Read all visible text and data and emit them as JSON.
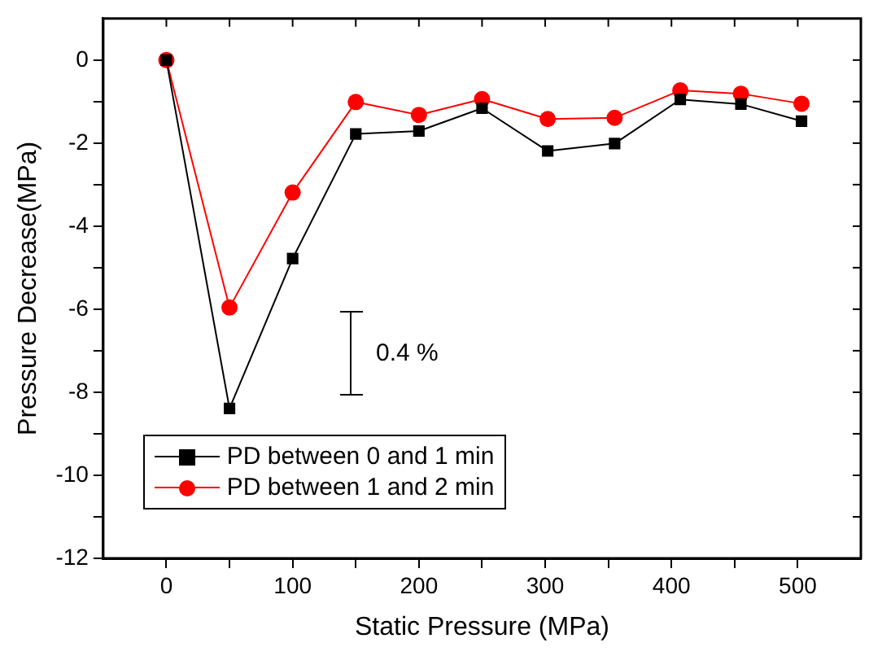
{
  "chart_data": {
    "type": "line",
    "xlabel": "Static Pressure (MPa)",
    "ylabel": "Pressure Decrease(MPa)",
    "x": [
      0,
      50,
      100,
      150,
      200,
      250,
      302,
      355,
      407,
      455,
      503
    ],
    "series": [
      {
        "name": "PD between 0 and 1 min",
        "color": "#000000",
        "marker": "square",
        "values": [
          0,
          -8.39,
          -4.78,
          -1.78,
          -1.71,
          -1.16,
          -2.19,
          -2.01,
          -0.95,
          -1.06,
          -1.47
        ]
      },
      {
        "name": "PD between 1 and 2 min",
        "color": "#ff0000",
        "marker": "circle",
        "values": [
          0,
          -5.96,
          -3.19,
          -1.01,
          -1.32,
          -0.94,
          -1.42,
          -1.39,
          -0.73,
          -0.81,
          -1.05
        ]
      }
    ],
    "xlim": [
      -50,
      550
    ],
    "xticks": [
      0,
      {
        "value": 50,
        "label": null
      },
      100,
      {
        "value": 150,
        "label": null
      },
      200,
      {
        "value": 250,
        "label": null
      },
      300,
      {
        "value": 350,
        "label": null
      },
      400,
      {
        "value": 450,
        "label": null
      },
      500
    ],
    "ylim": [
      -12,
      1
    ],
    "yticks": [
      -12,
      {
        "value": -11,
        "label": null
      },
      -10,
      {
        "value": -9,
        "label": null
      },
      -8,
      {
        "value": -7,
        "label": null
      },
      -6,
      {
        "value": -5,
        "label": null
      },
      -4,
      {
        "value": -3,
        "label": null
      },
      -2,
      {
        "value": -1,
        "label": null
      },
      0
    ],
    "annotations": [
      "0.4 %"
    ],
    "legend": "bottom left",
    "grid": false,
    "line_style": "solid"
  }
}
